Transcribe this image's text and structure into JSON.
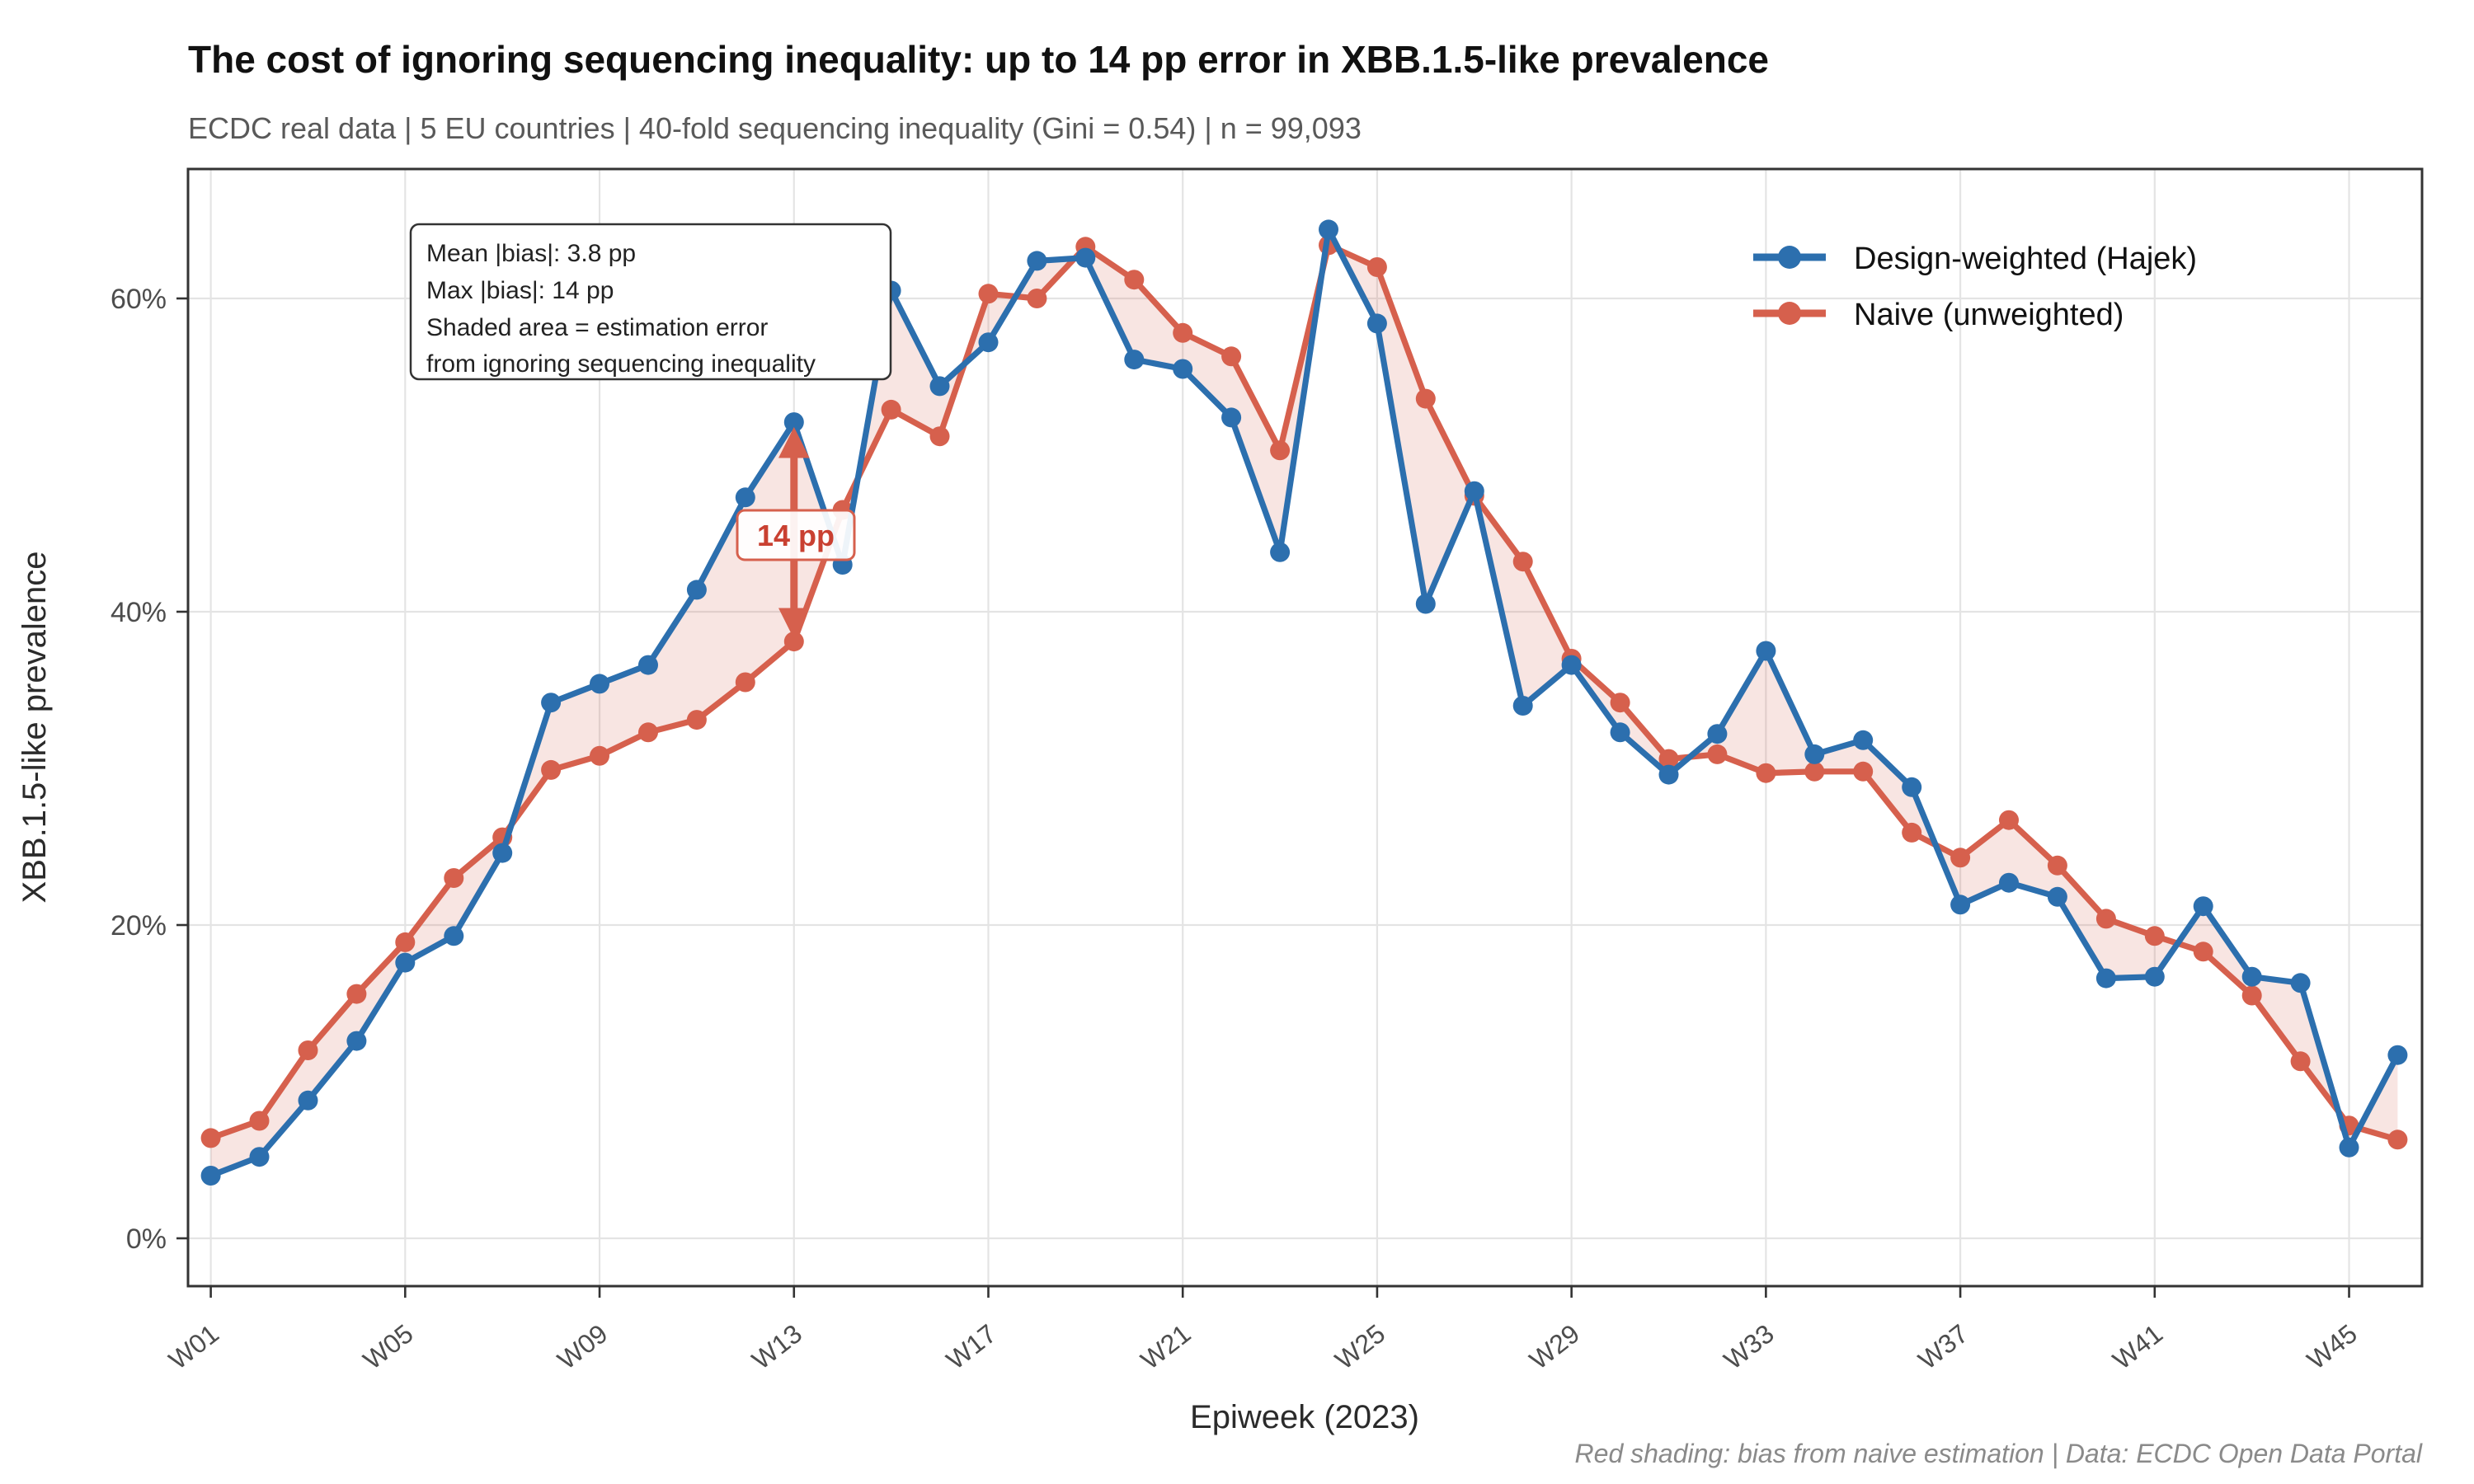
{
  "header": {
    "title": "The cost of ignoring sequencing inequality: up to 14 pp error in XBB.1.5-like prevalence",
    "subtitle": "ECDC real data | 5 EU countries | 40-fold sequencing inequality (Gini = 0.54) | n = 99,093"
  },
  "caption": "Red shading: bias from naive estimation | Data: ECDC Open Data Portal",
  "chart_data": {
    "type": "line",
    "title": "The cost of ignoring sequencing inequality: up to 14 pp error in XBB.1.5-like prevalence",
    "subtitle": "ECDC real data | 5 EU countries | 40-fold sequencing inequality (Gini = 0.54) | n = 99,093",
    "xlabel": "Epiweek (2023)",
    "ylabel": "XBB.1.5-like prevalence",
    "grid": true,
    "legend_position": "top-right-inside",
    "ylim": [
      -3,
      68
    ],
    "y_ticks": [
      0,
      20,
      40,
      60
    ],
    "y_tick_labels": [
      "0%",
      "20%",
      "40%",
      "60%"
    ],
    "x_tick_weeks": [
      1,
      5,
      9,
      13,
      17,
      21,
      25,
      29,
      33,
      37,
      41,
      45
    ],
    "x_tick_labels": [
      "W01",
      "W05",
      "W09",
      "W13",
      "W17",
      "W21",
      "W25",
      "W29",
      "W33",
      "W37",
      "W41",
      "W45"
    ],
    "categories": [
      "W01",
      "W02",
      "W03",
      "W04",
      "W05",
      "W06",
      "W07",
      "W08",
      "W09",
      "W10",
      "W11",
      "W12",
      "W13",
      "W14",
      "W15",
      "W16",
      "W17",
      "W18",
      "W19",
      "W20",
      "W21",
      "W22",
      "W23",
      "W24",
      "W25",
      "W26",
      "W27",
      "W28",
      "W29",
      "W30",
      "W31",
      "W32",
      "W33",
      "W34",
      "W35",
      "W36",
      "W37",
      "W38",
      "W39",
      "W40",
      "W41",
      "W42",
      "W43",
      "W44",
      "W45",
      "W46"
    ],
    "series": [
      {
        "name": "Design-weighted (Hajek)",
        "color": "#2C6FAE",
        "values": [
          4.0,
          5.2,
          8.8,
          12.6,
          17.6,
          19.3,
          24.6,
          34.2,
          35.4,
          36.6,
          41.4,
          47.3,
          52.1,
          43.0,
          60.5,
          54.4,
          57.2,
          62.4,
          62.6,
          56.1,
          55.5,
          52.4,
          43.8,
          64.4,
          58.4,
          40.5,
          47.7,
          34.0,
          36.6,
          32.3,
          29.6,
          32.2,
          37.5,
          30.9,
          31.8,
          28.8,
          21.3,
          22.7,
          21.8,
          16.6,
          16.7,
          21.2,
          16.7,
          16.3,
          5.8,
          11.7
        ]
      },
      {
        "name": "Naive (unweighted)",
        "color": "#D6604D",
        "values": [
          6.4,
          7.5,
          12.0,
          15.6,
          18.9,
          23.0,
          25.6,
          29.9,
          30.8,
          32.3,
          33.1,
          35.5,
          38.1,
          46.5,
          52.9,
          51.2,
          60.3,
          60.0,
          63.3,
          61.2,
          57.8,
          56.3,
          50.3,
          63.4,
          62.0,
          53.6,
          47.4,
          43.2,
          37.0,
          34.2,
          30.6,
          30.9,
          29.7,
          29.8,
          29.8,
          25.9,
          24.3,
          26.7,
          23.8,
          20.4,
          19.3,
          18.3,
          15.5,
          11.3,
          7.2,
          6.3
        ]
      }
    ],
    "band_color": "rgba(214,96,77,0.16)",
    "annotation_box": {
      "lines": [
        "Mean |bias|: 3.8 pp",
        "Max |bias|: 14 pp",
        "Shaded area = estimation error",
        "from ignoring sequencing inequality"
      ]
    },
    "bias_label": {
      "text": "14 pp",
      "week": "W13",
      "from_value": 38.1,
      "to_value": 52.1
    }
  },
  "colors": {
    "design_weighted": "#2C6FAE",
    "naive": "#D6604D",
    "band": "rgba(214,96,77,0.16)",
    "grid": "#e4e4e4",
    "panel_border": "#333333"
  }
}
